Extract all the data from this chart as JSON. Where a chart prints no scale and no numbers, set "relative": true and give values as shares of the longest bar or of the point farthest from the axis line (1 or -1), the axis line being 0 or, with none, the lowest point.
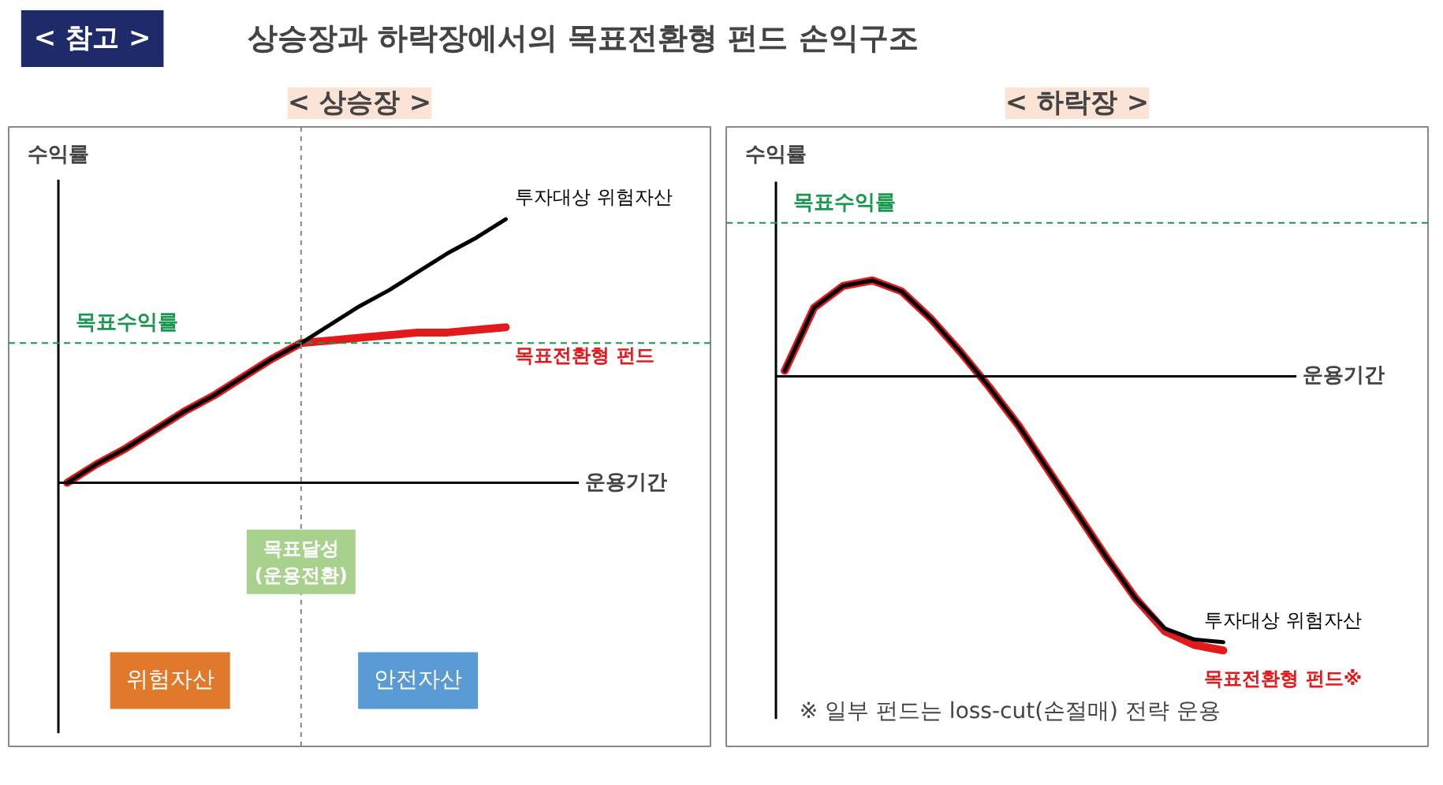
{
  "chart_data": [
    {
      "type": "other",
      "title": "상승장과 하락장에서의 목표전환형 펀드 손익구조",
      "annotations": [
        "< 참고 >"
      ]
    },
    {
      "type": "line",
      "title": "< 상승장 >",
      "xlabel": "운용기간",
      "ylabel": "수익률",
      "relative": true,
      "categories": [
        null,
        null,
        null,
        null,
        null,
        null,
        null,
        null,
        null,
        null,
        null,
        null,
        null,
        null,
        null,
        null
      ],
      "series": [
        {
          "name": "투자대상 위험자산",
          "color": "#000000",
          "values": [
            0,
            0.07,
            0.13,
            0.2,
            0.27,
            0.33,
            0.4,
            0.47,
            0.53,
            0.6,
            0.67,
            0.73,
            0.8,
            0.87,
            0.93,
            1.0
          ]
        },
        {
          "name": "목표전환형 펀드",
          "color": "#e31a1c",
          "values": [
            0,
            0.07,
            0.13,
            0.2,
            0.27,
            0.33,
            0.4,
            0.47,
            0.53,
            0.54,
            0.55,
            0.56,
            0.57,
            0.57,
            0.58,
            0.59
          ]
        }
      ],
      "ref_lines": [
        {
          "axis": "y",
          "value": 0.53,
          "label": "목표수익률",
          "color": "#1a9850",
          "line_style": "dashed"
        }
      ],
      "annotations": [
        "목표달성\n(운용전환)",
        "위험자산",
        "안전자산"
      ]
    },
    {
      "type": "line",
      "title": "< 하락장 >",
      "xlabel": "운용기간",
      "ylabel": "수익률",
      "relative": true,
      "categories": [
        null,
        null,
        null,
        null,
        null,
        null,
        null,
        null,
        null,
        null,
        null,
        null,
        null,
        null,
        null,
        null
      ],
      "series": [
        {
          "name": "투자대상 위험자산",
          "color": "#000000",
          "values": [
            0.02,
            0.25,
            0.33,
            0.35,
            0.31,
            0.21,
            0.09,
            -0.04,
            -0.18,
            -0.34,
            -0.5,
            -0.66,
            -0.81,
            -0.92,
            -0.96,
            -0.97
          ]
        },
        {
          "name": "목표전환형 펀드※",
          "color": "#e31a1c",
          "values": [
            0.02,
            0.25,
            0.33,
            0.35,
            0.31,
            0.21,
            0.09,
            -0.04,
            -0.18,
            -0.34,
            -0.5,
            -0.66,
            -0.81,
            -0.93,
            -0.98,
            -1.0
          ]
        }
      ],
      "ref_lines": [
        {
          "axis": "y",
          "value": 0.56,
          "label": "목표수익률",
          "color": "#1a9850",
          "line_style": "dashed"
        }
      ],
      "annotations": [
        "※ 일부 펀드는 loss-cut(손절매) 전략 운용"
      ]
    }
  ]
}
